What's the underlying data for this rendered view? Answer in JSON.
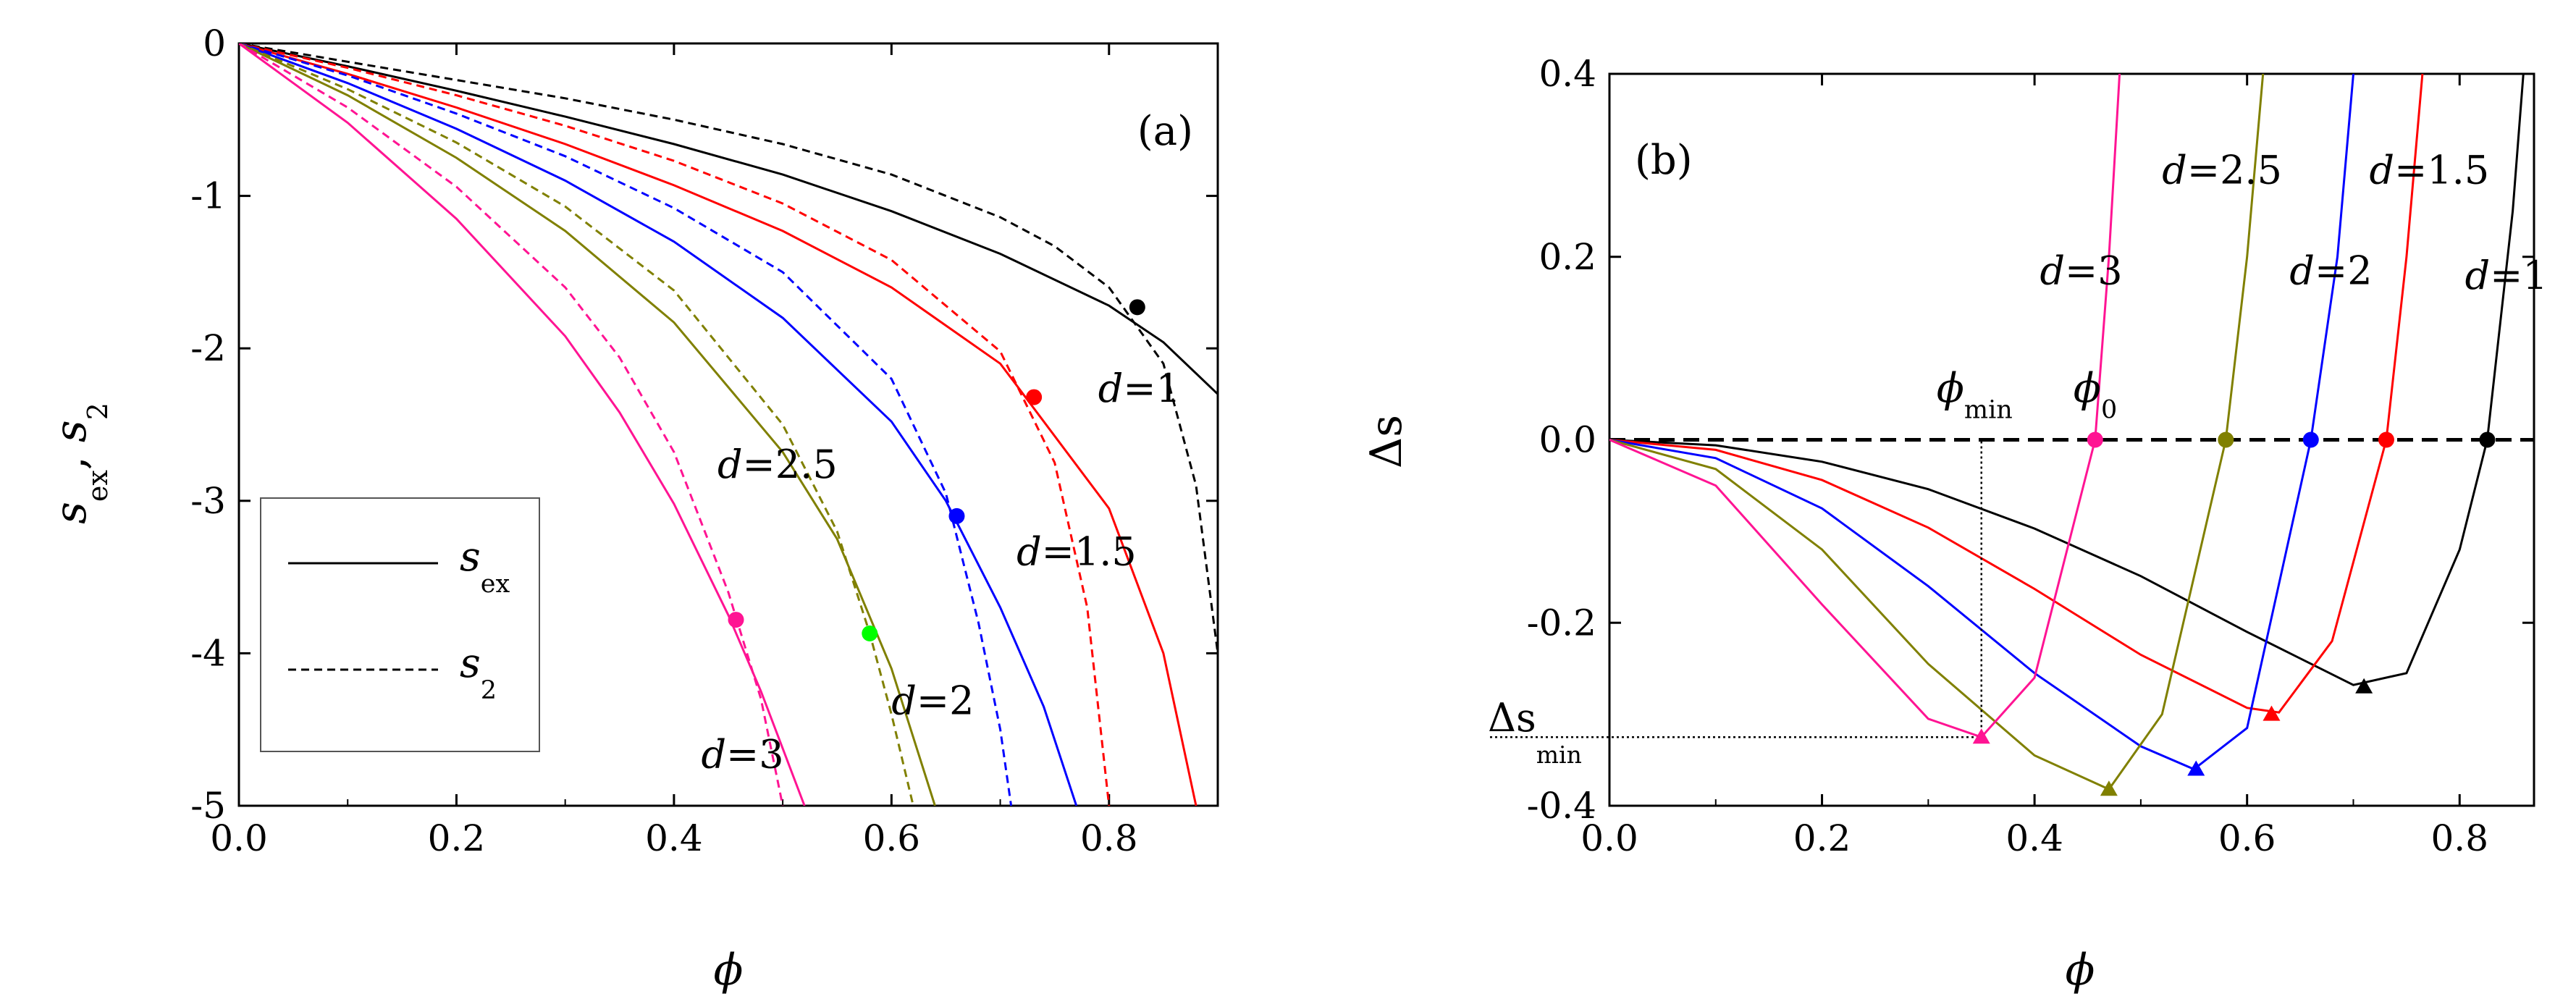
{
  "chart_data": [
    {
      "panel_label": "(a)",
      "type": "line",
      "xlabel": "ϕ",
      "ylabel_parts": {
        "s": "s",
        "ex": "ex",
        "comma": ",",
        "two": "2"
      },
      "xlim": [
        0.0,
        0.9
      ],
      "ylim": [
        -5,
        0
      ],
      "x_ticks": [
        0.0,
        0.2,
        0.4,
        0.6,
        0.8
      ],
      "x_tick_labels": [
        "0.0",
        "0.2",
        "0.4",
        "0.6",
        "0.8"
      ],
      "y_ticks": [
        0,
        -1,
        -2,
        -3,
        -4,
        -5
      ],
      "y_tick_labels": [
        "0",
        "-1",
        "-2",
        "-3",
        "-4",
        "-5"
      ],
      "legend": {
        "position": "lower-left",
        "entries": [
          {
            "symbol": "s",
            "sub": "ex",
            "style": "solid"
          },
          {
            "symbol": "s",
            "sub": "2",
            "style": "dashed"
          }
        ]
      },
      "series": [
        {
          "name": "d=1",
          "color": "#000000",
          "s_ex": {
            "x": [
              0.0,
              0.1,
              0.2,
              0.3,
              0.4,
              0.5,
              0.6,
              0.7,
              0.8,
              0.85,
              0.9
            ],
            "y": [
              0,
              -0.15,
              -0.31,
              -0.48,
              -0.66,
              -0.86,
              -1.1,
              -1.38,
              -1.72,
              -1.96,
              -2.3
            ]
          },
          "s_2": {
            "x": [
              0.0,
              0.1,
              0.2,
              0.3,
              0.4,
              0.5,
              0.6,
              0.7,
              0.75,
              0.8,
              0.85,
              0.88,
              0.9
            ],
            "y": [
              0,
              -0.12,
              -0.24,
              -0.36,
              -0.5,
              -0.66,
              -0.86,
              -1.14,
              -1.33,
              -1.6,
              -2.1,
              -2.9,
              -4.0
            ]
          },
          "marker": {
            "x": 0.826,
            "y": -1.73,
            "color": "#000000"
          },
          "label": {
            "text": "d=1",
            "x": 0.79,
            "y": -2.35
          }
        },
        {
          "name": "d=1.5",
          "color": "#ff0000",
          "s_ex": {
            "x": [
              0.0,
              0.1,
              0.2,
              0.3,
              0.4,
              0.5,
              0.6,
              0.7,
              0.8,
              0.85,
              0.88
            ],
            "y": [
              0,
              -0.2,
              -0.42,
              -0.66,
              -0.93,
              -1.23,
              -1.6,
              -2.1,
              -3.05,
              -4.0,
              -5.0
            ]
          },
          "s_2": {
            "x": [
              0.0,
              0.1,
              0.2,
              0.3,
              0.4,
              0.5,
              0.6,
              0.7,
              0.75,
              0.78,
              0.8
            ],
            "y": [
              0,
              -0.16,
              -0.34,
              -0.54,
              -0.77,
              -1.05,
              -1.42,
              -2.02,
              -2.75,
              -3.7,
              -5.0
            ]
          },
          "marker": {
            "x": 0.731,
            "y": -2.32,
            "color": "#ff0000"
          },
          "label": {
            "text": "d=1.5",
            "x": 0.715,
            "y": -3.42
          }
        },
        {
          "name": "d=2",
          "color": "#0000ff",
          "s_ex": {
            "x": [
              0.0,
              0.1,
              0.2,
              0.3,
              0.4,
              0.5,
              0.6,
              0.65,
              0.7,
              0.74,
              0.77
            ],
            "y": [
              0,
              -0.26,
              -0.56,
              -0.9,
              -1.3,
              -1.8,
              -2.48,
              -3.0,
              -3.7,
              -4.35,
              -5.0
            ]
          },
          "s_2": {
            "x": [
              0.0,
              0.1,
              0.2,
              0.3,
              0.4,
              0.5,
              0.6,
              0.65,
              0.68,
              0.7,
              0.71
            ],
            "y": [
              0,
              -0.21,
              -0.46,
              -0.74,
              -1.08,
              -1.5,
              -2.2,
              -2.95,
              -3.8,
              -4.5,
              -5.0
            ]
          },
          "marker": {
            "x": 0.66,
            "y": -3.1,
            "color": "#0000ff"
          },
          "label": {
            "text": "d=2",
            "x": 0.6,
            "y": -4.4
          }
        },
        {
          "name": "d=2.5",
          "color": "#808000",
          "s_ex": {
            "x": [
              0.0,
              0.1,
              0.2,
              0.3,
              0.4,
              0.5,
              0.55,
              0.6,
              0.64
            ],
            "y": [
              0,
              -0.34,
              -0.75,
              -1.23,
              -1.83,
              -2.68,
              -3.25,
              -4.1,
              -5.0
            ]
          },
          "s_2": {
            "x": [
              0.0,
              0.1,
              0.2,
              0.3,
              0.4,
              0.5,
              0.55,
              0.58,
              0.6,
              0.62
            ],
            "y": [
              0,
              -0.3,
              -0.65,
              -1.07,
              -1.62,
              -2.5,
              -3.2,
              -3.87,
              -4.4,
              -5.0
            ]
          },
          "marker": {
            "x": 0.58,
            "y": -3.87,
            "color": "#00ff00"
          },
          "label": {
            "text": "d=2.5",
            "x": 0.44,
            "y": -2.85
          }
        },
        {
          "name": "d=3",
          "color": "#ff1493",
          "s_ex": {
            "x": [
              0.0,
              0.1,
              0.2,
              0.3,
              0.35,
              0.4,
              0.45,
              0.48,
              0.52
            ],
            "y": [
              0,
              -0.52,
              -1.15,
              -1.92,
              -2.42,
              -3.02,
              -3.75,
              -4.25,
              -5.0
            ]
          },
          "s_2": {
            "x": [
              0.0,
              0.1,
              0.2,
              0.3,
              0.35,
              0.4,
              0.45,
              0.48,
              0.5
            ],
            "y": [
              0,
              -0.42,
              -0.94,
              -1.6,
              -2.06,
              -2.68,
              -3.6,
              -4.3,
              -5.0
            ]
          },
          "marker": {
            "x": 0.457,
            "y": -3.78,
            "color": "#ff1493"
          },
          "label": {
            "text": "d=3",
            "x": 0.425,
            "y": -4.75
          }
        }
      ]
    },
    {
      "panel_label": "(b)",
      "type": "line",
      "xlabel": "ϕ",
      "ylabel": "Δs",
      "xlim": [
        0.0,
        0.87
      ],
      "ylim": [
        -0.4,
        0.4
      ],
      "x_ticks": [
        0.0,
        0.2,
        0.4,
        0.6,
        0.8
      ],
      "x_tick_labels": [
        "0.0",
        "0.2",
        "0.4",
        "0.6",
        "0.8"
      ],
      "y_ticks": [
        0.4,
        0.2,
        0.0,
        -0.2,
        -0.4
      ],
      "y_tick_labels": [
        "0.4",
        "0.2",
        "0.0",
        "-0.2",
        "-0.4"
      ],
      "reference_line": {
        "y": 0.0,
        "style": "dashed"
      },
      "annotations": {
        "phi_min": {
          "symbol": "ϕ",
          "sub": "min",
          "x": 0.35
        },
        "phi_0": {
          "symbol": "ϕ",
          "sub": "0",
          "x": 0.457
        },
        "delta_s_min": {
          "symbol": "Δs",
          "sub": "min",
          "y": -0.325
        }
      },
      "series": [
        {
          "name": "d=1",
          "color": "#000000",
          "x": [
            0.0,
            0.1,
            0.2,
            0.3,
            0.4,
            0.5,
            0.6,
            0.7,
            0.75,
            0.8,
            0.826,
            0.85,
            0.86
          ],
          "y": [
            0,
            -0.006,
            -0.024,
            -0.054,
            -0.097,
            -0.149,
            -0.21,
            -0.268,
            -0.255,
            -0.12,
            0.0,
            0.25,
            0.4
          ],
          "min_marker": {
            "x": 0.71,
            "y": -0.27
          },
          "zero_marker": {
            "x": 0.826,
            "y": 0.0
          },
          "label": {
            "text": "d=1",
            "x": 0.805,
            "y": 0.165
          }
        },
        {
          "name": "d=1.5",
          "color": "#ff0000",
          "x": [
            0.0,
            0.1,
            0.2,
            0.3,
            0.4,
            0.5,
            0.6,
            0.63,
            0.68,
            0.731,
            0.75,
            0.765
          ],
          "y": [
            0,
            -0.011,
            -0.044,
            -0.096,
            -0.163,
            -0.235,
            -0.293,
            -0.298,
            -0.22,
            0.0,
            0.2,
            0.4
          ],
          "min_marker": {
            "x": 0.623,
            "y": -0.3
          },
          "zero_marker": {
            "x": 0.731,
            "y": 0.0
          },
          "label": {
            "text": "d=1.5",
            "x": 0.715,
            "y": 0.28
          }
        },
        {
          "name": "d=2",
          "color": "#0000ff",
          "x": [
            0.0,
            0.1,
            0.2,
            0.3,
            0.4,
            0.5,
            0.55,
            0.6,
            0.66,
            0.685,
            0.7
          ],
          "y": [
            0,
            -0.02,
            -0.075,
            -0.16,
            -0.255,
            -0.335,
            -0.36,
            -0.315,
            0.0,
            0.2,
            0.4
          ],
          "min_marker": {
            "x": 0.552,
            "y": -0.36
          },
          "zero_marker": {
            "x": 0.66,
            "y": 0.0
          },
          "label": {
            "text": "d=2",
            "x": 0.64,
            "y": 0.17
          }
        },
        {
          "name": "d=2.5",
          "color": "#808000",
          "x": [
            0.0,
            0.1,
            0.2,
            0.3,
            0.4,
            0.47,
            0.52,
            0.58,
            0.6,
            0.615
          ],
          "y": [
            0,
            -0.032,
            -0.12,
            -0.245,
            -0.345,
            -0.382,
            -0.3,
            0.0,
            0.2,
            0.4
          ],
          "min_marker": {
            "x": 0.47,
            "y": -0.382
          },
          "zero_marker": {
            "x": 0.58,
            "y": 0.0
          },
          "label": {
            "text": "d=2.5",
            "x": 0.52,
            "y": 0.28
          }
        },
        {
          "name": "d=3",
          "color": "#ff1493",
          "x": [
            0.0,
            0.1,
            0.2,
            0.3,
            0.35,
            0.4,
            0.457,
            0.47,
            0.48
          ],
          "y": [
            0,
            -0.05,
            -0.18,
            -0.305,
            -0.325,
            -0.26,
            0.0,
            0.2,
            0.4
          ],
          "min_marker": {
            "x": 0.35,
            "y": -0.325
          },
          "zero_marker": {
            "x": 0.457,
            "y": 0.0
          },
          "label": {
            "text": "d=3",
            "x": 0.405,
            "y": 0.17
          }
        }
      ]
    }
  ]
}
